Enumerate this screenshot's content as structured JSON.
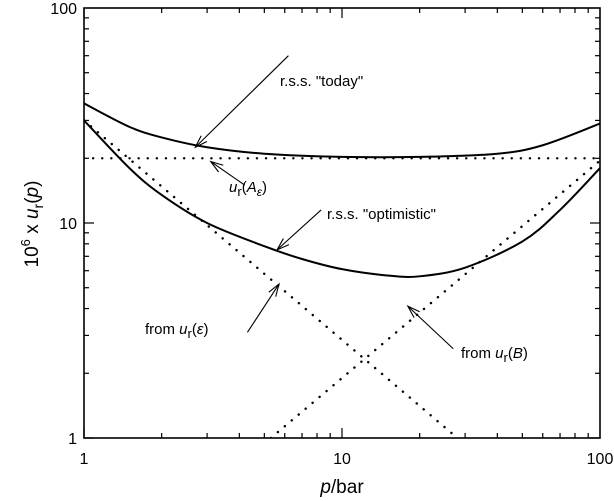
{
  "chart_data": {
    "type": "line",
    "x_scale": "log",
    "y_scale": "log",
    "xlim": [
      1,
      100
    ],
    "ylim": [
      1,
      100
    ],
    "x_ticks": [
      1,
      10,
      100
    ],
    "y_ticks": [
      1,
      10,
      100
    ],
    "x_tick_labels": [
      "1",
      "10",
      "100"
    ],
    "y_tick_labels": [
      "1",
      "10",
      "100"
    ],
    "grid": false,
    "xlabel": {
      "italic": "p",
      "rest": "/bar"
    },
    "ylabel": {
      "prefix": "10",
      "exp": "6",
      "mid": " x ",
      "var": "u",
      "sub": "r",
      "open": "(",
      "arg": "p",
      "close": ")"
    },
    "series": [
      {
        "style": "solid",
        "points": [
          [
            1,
            36
          ],
          [
            1.5,
            28
          ],
          [
            2,
            25
          ],
          [
            3,
            22.5
          ],
          [
            5,
            21
          ],
          [
            10,
            20.3
          ],
          [
            20,
            20.3
          ],
          [
            40,
            21
          ],
          [
            60,
            23
          ],
          [
            100,
            29
          ]
        ]
      },
      {
        "style": "solid",
        "points": [
          [
            1,
            30
          ],
          [
            1.5,
            18
          ],
          [
            2,
            13.5
          ],
          [
            3,
            10
          ],
          [
            5,
            7.8
          ],
          [
            7,
            6.8
          ],
          [
            10,
            6.1
          ],
          [
            15,
            5.7
          ],
          [
            20,
            5.65
          ],
          [
            30,
            6.2
          ],
          [
            50,
            8.2
          ],
          [
            70,
            11.5
          ],
          [
            100,
            18
          ]
        ]
      },
      {
        "style": "dotted",
        "points": [
          [
            1,
            20
          ],
          [
            100,
            20
          ]
        ]
      },
      {
        "style": "dotted",
        "points": [
          [
            1,
            30
          ],
          [
            28,
            1
          ]
        ]
      },
      {
        "style": "dotted",
        "points": [
          [
            5.3,
            1
          ],
          [
            100,
            19.5
          ]
        ]
      }
    ],
    "annotations": [
      {
        "id": "today",
        "text": "r.s.s. \"today\"",
        "tip": [
          2.7,
          22.5
        ],
        "tail": [
          6.2,
          60
        ]
      },
      {
        "id": "ua",
        "text_var": "u",
        "text_sub": "r",
        "text_open": "(",
        "text_arg": "A",
        "text_argsub": "ε",
        "text_close": ")",
        "tip": [
          3.1,
          19.3
        ],
        "tail": [
          4.2,
          15
        ]
      },
      {
        "id": "optimistic",
        "text": "r.s.s. \"optimistic\"",
        "tip": [
          5.6,
          7.5
        ],
        "tail": [
          8.3,
          11.5
        ]
      },
      {
        "id": "fromeps",
        "text": "from ",
        "text_var": "u",
        "text_sub": "r",
        "text_open": "(",
        "text_arg": "ε",
        "text_close": ")",
        "tip": [
          5.7,
          5.2
        ],
        "tail": [
          4.3,
          3.1
        ]
      },
      {
        "id": "fromB",
        "text": "from ",
        "text_var": "u",
        "text_sub": "r",
        "text_open": "(",
        "text_arg": "B",
        "text_close": ")",
        "tip": [
          18,
          4.1
        ],
        "tail": [
          27,
          2.6
        ]
      }
    ]
  }
}
